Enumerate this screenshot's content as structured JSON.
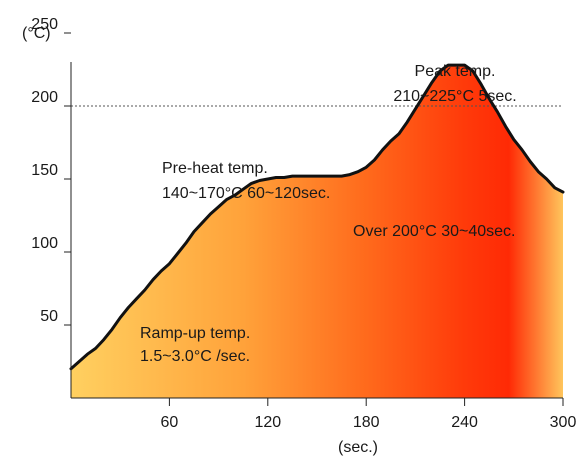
{
  "chart_data": {
    "type": "area",
    "title": "",
    "xlabel": "(sec.)",
    "ylabel": "(°C)",
    "xlim": [
      0,
      300
    ],
    "ylim": [
      0,
      250
    ],
    "xticks": [
      60,
      120,
      180,
      240,
      300
    ],
    "xtick_labels": [
      "60",
      "120",
      "180",
      "240",
      "300"
    ],
    "yticks": [
      50,
      100,
      150,
      200,
      250
    ],
    "ytick_labels": [
      "50",
      "100",
      "150",
      "200",
      "250"
    ],
    "reference_line": {
      "y": 200,
      "style": "dotted"
    },
    "grid": false,
    "legend": "none",
    "series": [
      {
        "x": [
          0,
          5,
          10,
          15,
          20,
          25,
          30,
          35,
          40,
          45,
          50,
          55,
          60,
          65,
          70,
          75,
          80,
          85,
          90,
          95,
          100,
          105,
          110,
          115,
          120,
          125,
          130,
          135,
          140,
          145,
          150,
          155,
          160,
          165,
          170,
          175,
          180,
          185,
          190,
          195,
          200,
          205,
          210,
          215,
          220,
          225,
          230,
          235,
          240,
          245,
          250,
          255,
          260,
          265,
          270,
          275,
          280,
          285,
          290,
          295,
          300
        ],
        "values": [
          20,
          25,
          30,
          34,
          40,
          47,
          55,
          62,
          68,
          74,
          81,
          87,
          92,
          99,
          106,
          114,
          120,
          126,
          131,
          136,
          139,
          143,
          147,
          149,
          150,
          151,
          151,
          152,
          152,
          152,
          152,
          152,
          152,
          152,
          153,
          155,
          158,
          163,
          170,
          176,
          181,
          189,
          198,
          207,
          216,
          224,
          228,
          228,
          228,
          224,
          215,
          205,
          196,
          186,
          177,
          170,
          162,
          155,
          150,
          144,
          141
        ]
      }
    ],
    "fill_colors": [
      "#ffd060",
      "#ffa23a",
      "#ff6a1c",
      "#ff3a0a",
      "#ff2a05",
      "#ffc55c"
    ],
    "line_color": "#111111",
    "annotations": [
      {
        "id": "peak",
        "lines": [
          "Peak temp.",
          "210~225°C 5sec."
        ]
      },
      {
        "id": "preheat",
        "lines": [
          "Pre-heat temp.",
          "140~170°C 60~120sec."
        ]
      },
      {
        "id": "over200",
        "lines": [
          "Over 200°C 30~40sec."
        ]
      },
      {
        "id": "rampup",
        "lines": [
          "Ramp-up temp.",
          "1.5~3.0°C /sec."
        ]
      }
    ]
  }
}
